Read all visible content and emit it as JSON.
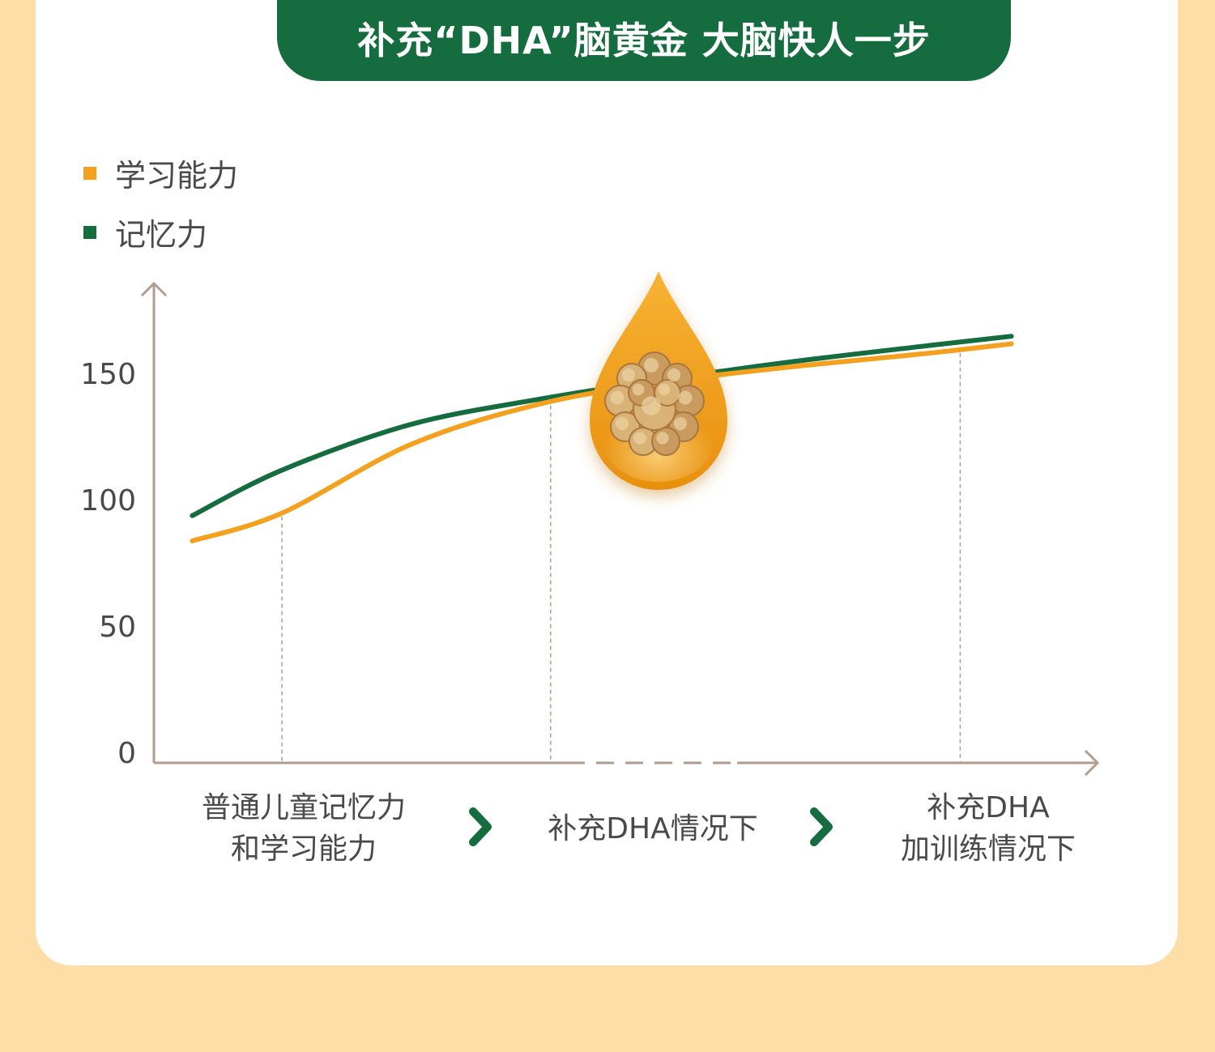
{
  "banner": {
    "title": "补充“DHA”脑黄金 大脑快人一步"
  },
  "colors": {
    "page_background": "#fddea6",
    "card": "#ffffff",
    "banner": "#146c3f",
    "learning": "#f4a11f",
    "memory": "#146c3f",
    "axis": "#b09d8f",
    "arrow": "#146c3f"
  },
  "chart_data": {
    "type": "line",
    "x": [
      "普通儿童记忆力和学习能力",
      "补充DHA情况下",
      "补充DHA加训练情况下"
    ],
    "x_label_lines": [
      [
        "普通儿童记忆力",
        "和学习能力"
      ],
      [
        "补充DHA情况下"
      ],
      [
        "补充DHA",
        "加训练情况下"
      ]
    ],
    "y_ticks": [
      "0",
      "50",
      "100",
      "150"
    ],
    "ylim": [
      0,
      190
    ],
    "legend_position": "top-left",
    "grid": false,
    "series": [
      {
        "name": "学习能力",
        "color": "#f4a11f",
        "points": [
          [
            0.3,
            84
          ],
          [
            1,
            95
          ],
          [
            2,
            122
          ],
          [
            3,
            138
          ],
          [
            4,
            147
          ],
          [
            5,
            153
          ],
          [
            6,
            158
          ],
          [
            6.7,
            162
          ]
        ]
      },
      {
        "name": "记忆力",
        "color": "#146c3f",
        "points": [
          [
            0.3,
            94
          ],
          [
            1,
            112
          ],
          [
            2,
            130
          ],
          [
            3,
            140
          ],
          [
            4,
            148
          ],
          [
            5,
            155
          ],
          [
            6,
            161
          ],
          [
            6.7,
            165
          ]
        ]
      }
    ],
    "guide_lines": [
      1,
      3.1,
      6.3
    ],
    "annotation_icon": "walnut-in-oil-drop-icon",
    "stage_arrow_icon": "chevron-right-icon"
  }
}
